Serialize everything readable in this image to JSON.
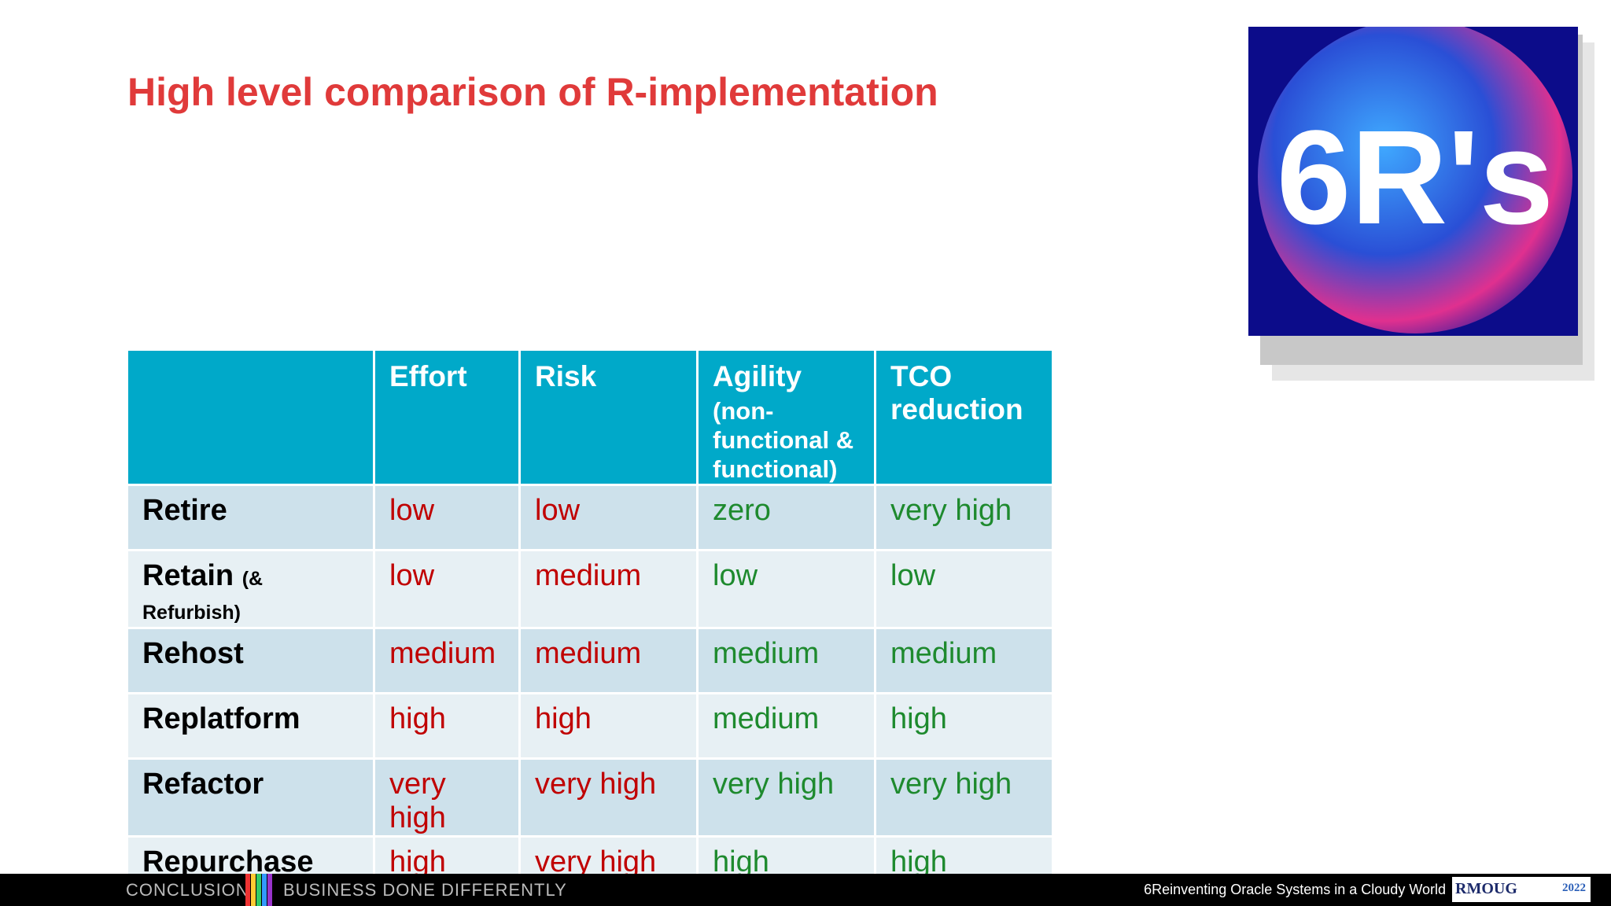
{
  "title": "High level comparison of R-implementation",
  "image": {
    "label": "6R's"
  },
  "table": {
    "columns": [
      {
        "label": "Effort",
        "color": "#c00000"
      },
      {
        "label": "Risk",
        "color": "#c00000"
      },
      {
        "label": "Agility",
        "sublabel": "(non-functional & functional)",
        "color": "#1e8a2e"
      },
      {
        "label": "TCO reduction",
        "color": "#1e8a2e"
      }
    ],
    "rows": [
      {
        "label": "Retire",
        "cells": [
          "low",
          "low",
          "zero",
          "very high"
        ]
      },
      {
        "label": "Retain",
        "sublabel": "(& Refurbish)",
        "cells": [
          "low",
          "medium",
          "low",
          "low"
        ]
      },
      {
        "label": "Rehost",
        "cells": [
          "medium",
          "medium",
          "medium",
          "medium"
        ]
      },
      {
        "label": "Replatform",
        "cells": [
          "high",
          "high",
          "medium",
          "high"
        ]
      },
      {
        "label": "Refactor",
        "cells": [
          "very high",
          "very high",
          "very high",
          "very high"
        ]
      },
      {
        "label": "Repurchase",
        "cells": [
          "high",
          "very high",
          "high",
          "high"
        ]
      }
    ]
  },
  "footer": {
    "section": "CONCLUSION",
    "tagline": "BUSINESS DONE DIFFERENTLY",
    "caption": "6Reinventing Oracle Systems in a Cloudy World",
    "logo": "RMOUG",
    "year": "2022"
  }
}
